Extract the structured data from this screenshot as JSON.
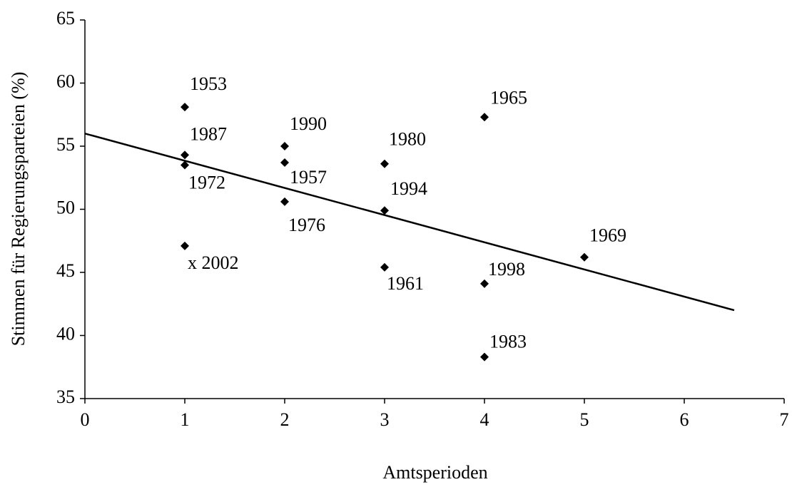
{
  "chart_data": {
    "type": "scatter",
    "x_label": "Amtsperioden",
    "y_label": "Stimmen für Regierungsparteien (%)",
    "xlim": [
      0,
      7
    ],
    "xticks": [
      0,
      1,
      2,
      3,
      4,
      5,
      6,
      7
    ],
    "ylim": [
      35,
      65
    ],
    "yticks": [
      35,
      40,
      45,
      50,
      55,
      60,
      65
    ],
    "color": "#000000",
    "x": [
      1,
      1,
      1,
      1,
      2,
      2,
      2,
      3,
      3,
      3,
      4,
      4,
      4,
      5
    ],
    "values": [
      58.1,
      54.3,
      53.5,
      47.1,
      55.0,
      53.7,
      50.6,
      53.6,
      49.9,
      45.4,
      57.3,
      44.1,
      38.3,
      46.2
    ],
    "point_labels": [
      "1953",
      "1987",
      "1972",
      "x 2002",
      "1990",
      "1957",
      "1976",
      "1980",
      "1994",
      "1961",
      "1965",
      "1998",
      "1983",
      "1969"
    ],
    "trend": {
      "x": [
        0,
        6.5
      ],
      "values": [
        56,
        42
      ]
    }
  }
}
